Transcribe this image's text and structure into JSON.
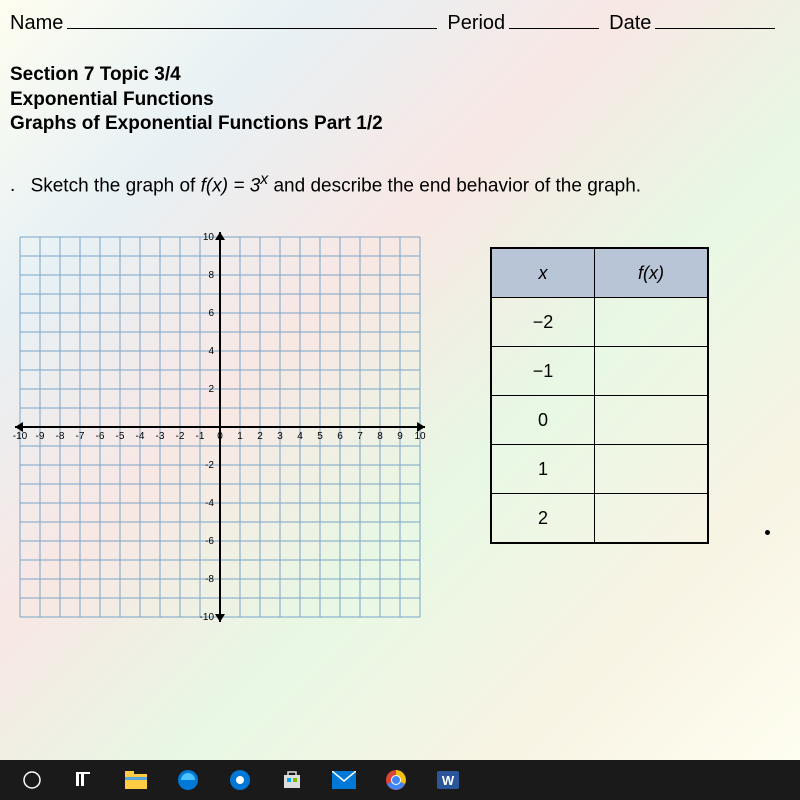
{
  "header": {
    "name_label": "Name",
    "period_label": "Period",
    "date_label": "Date"
  },
  "section": {
    "line1": "Section 7 Topic 3/4",
    "line2": "Exponential Functions",
    "line3": "Graphs of Exponential Functions Part 1/2"
  },
  "question": {
    "bullet": ".",
    "text_before": "Sketch the graph of ",
    "fx": "f(x) = 3",
    "exp": "x",
    "text_after": " and describe the end behavior of the graph."
  },
  "grid": {
    "xmin": -10,
    "xmax": 10,
    "ymin": -10,
    "ymax": 10,
    "x_tick_labels": [
      "-10",
      "-9",
      "-8",
      "-7",
      "-6",
      "-5",
      "-4",
      "-3",
      "-2",
      "-1",
      "0",
      "1",
      "2",
      "3",
      "4",
      "5",
      "6",
      "7",
      "8",
      "9",
      "10"
    ],
    "y_tick_labels_pos": [
      "2",
      "4",
      "6",
      "8",
      "10"
    ],
    "y_tick_labels_neg": [
      "-2",
      "-4",
      "-6",
      "-8",
      "-10"
    ],
    "grid_color": "#7aa5c9",
    "axis_color": "#000000",
    "label_fontsize": 10
  },
  "table": {
    "col_x": "x",
    "col_fx": "f(x)",
    "rows": [
      {
        "x": "−2",
        "fx": ""
      },
      {
        "x": "−1",
        "fx": ""
      },
      {
        "x": "0",
        "fx": ""
      },
      {
        "x": "1",
        "fx": ""
      },
      {
        "x": "2",
        "fx": ""
      }
    ]
  },
  "taskbar": {
    "icons": [
      "start",
      "search",
      "explorer",
      "edge",
      "settings",
      "store",
      "mail",
      "chrome",
      "word"
    ]
  }
}
